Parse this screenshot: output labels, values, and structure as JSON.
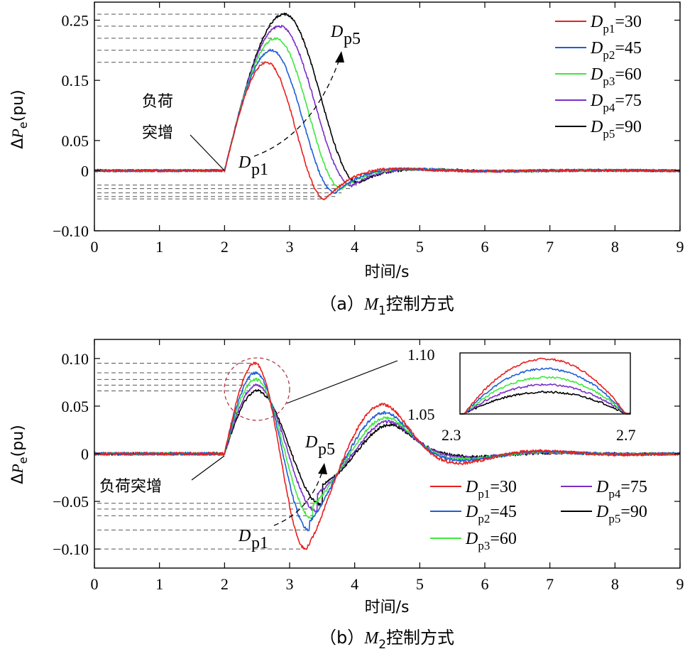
{
  "chart_data": [
    {
      "type": "line",
      "caption": {
        "prefix": "（a）",
        "var": "M",
        "sub": "1",
        "suffix": "控制方式"
      },
      "xlabel": "时间/s",
      "ylabel": {
        "delta": "Δ",
        "var": "P",
        "sub": "e",
        "unit": "(pu)"
      },
      "xlim": [
        0,
        9
      ],
      "ylim": [
        -0.1,
        0.28
      ],
      "xticks": [
        0,
        1,
        2,
        3,
        4,
        5,
        6,
        7,
        8,
        9
      ],
      "xtick_labels": [
        "0",
        "1",
        "2",
        "3",
        "4",
        "5",
        "6",
        "7",
        "8",
        "9"
      ],
      "yticks": [
        -0.1,
        0,
        0.05,
        0.15,
        0.25
      ],
      "ytick_labels": [
        "−0.10",
        "0",
        "0.05",
        "0.15",
        "0.25"
      ],
      "legend_position": "top-right",
      "grid": false,
      "guide_lines_peak": [
        0.18,
        0.2,
        0.22,
        0.24,
        0.26
      ],
      "guide_lines_trough": [
        -0.047,
        -0.043,
        -0.037,
        -0.03,
        -0.024
      ],
      "series": [
        {
          "name": "D_p1=30",
          "label": {
            "var": "D",
            "sub": "p1",
            "eq": "=30"
          },
          "color": "#e8201e",
          "peak": 0.18,
          "tpeak": 2.65,
          "trough": -0.047,
          "ttrough": 3.55,
          "tend": 3.5
        },
        {
          "name": "D_p2=45",
          "label": {
            "var": "D",
            "sub": "p2",
            "eq": "=45"
          },
          "color": "#1f5fd6",
          "peak": 0.2,
          "tpeak": 2.72,
          "trough": -0.037,
          "ttrough": 3.7,
          "tend": 3.7
        },
        {
          "name": "D_p3=60",
          "label": {
            "var": "D",
            "sub": "p3",
            "eq": "=60"
          },
          "color": "#3ee83e",
          "peak": 0.22,
          "tpeak": 2.79,
          "trough": -0.03,
          "ttrough": 3.8,
          "tend": 3.85
        },
        {
          "name": "D_p4=75",
          "label": {
            "var": "D",
            "sub": "p4",
            "eq": "=75"
          },
          "color": "#7a2ec8",
          "peak": 0.24,
          "tpeak": 2.85,
          "trough": -0.025,
          "ttrough": 3.95,
          "tend": 3.95
        },
        {
          "name": "D_p5=90",
          "label": {
            "var": "D",
            "sub": "p5",
            "eq": "=90"
          },
          "color": "#000000",
          "peak": 0.26,
          "tpeak": 2.92,
          "trough": -0.02,
          "ttrough": 4.05,
          "tend": 4.05
        }
      ],
      "annotations": {
        "load_step": [
          "负荷",
          "突增"
        ],
        "dp1": {
          "var": "D",
          "sub": "p1"
        },
        "dp5": {
          "var": "D",
          "sub": "p5"
        }
      }
    },
    {
      "type": "line",
      "caption": {
        "prefix": "（b）",
        "var": "M",
        "sub": "2",
        "suffix": "控制方式"
      },
      "xlabel": "时间/s",
      "ylabel": {
        "delta": "Δ",
        "var": "P",
        "sub": "e",
        "unit": "(pu)"
      },
      "xlim": [
        0,
        9
      ],
      "ylim": [
        -0.12,
        0.12
      ],
      "xticks": [
        0,
        1,
        2,
        3,
        4,
        5,
        6,
        7,
        8,
        9
      ],
      "xtick_labels": [
        "0",
        "1",
        "2",
        "3",
        "4",
        "5",
        "6",
        "7",
        "8",
        "9"
      ],
      "yticks": [
        -0.1,
        -0.05,
        0,
        0.05,
        0.1
      ],
      "ytick_labels": [
        "−0.10",
        "−0.05",
        "0",
        "0.05",
        "0.10"
      ],
      "legend_position": "bottom-right",
      "grid": false,
      "guide_lines_peak": [
        0.095,
        0.085,
        0.078,
        0.072,
        0.066
      ],
      "guide_lines_trough": [
        -0.1,
        -0.08,
        -0.065,
        -0.058,
        -0.052
      ],
      "series": [
        {
          "name": "D_p1=30",
          "label": {
            "var": "D",
            "sub": "p1",
            "eq": "=30"
          },
          "color": "#e8201e",
          "peak": 0.095,
          "tpeak": 2.47,
          "trough": -0.1,
          "ttrough": 3.25
        },
        {
          "name": "D_p2=45",
          "label": {
            "var": "D",
            "sub": "p2",
            "eq": "=45"
          },
          "color": "#1f5fd6",
          "peak": 0.085,
          "tpeak": 2.48,
          "trough": -0.08,
          "ttrough": 3.3
        },
        {
          "name": "D_p3=60",
          "label": {
            "var": "D",
            "sub": "p3",
            "eq": "=60"
          },
          "color": "#3ee83e",
          "peak": 0.078,
          "tpeak": 2.48,
          "trough": -0.068,
          "ttrough": 3.35
        },
        {
          "name": "D_p4=75",
          "label": {
            "var": "D",
            "sub": "p4",
            "eq": "=75"
          },
          "color": "#7a2ec8",
          "peak": 0.072,
          "tpeak": 2.49,
          "trough": -0.06,
          "ttrough": 3.42
        },
        {
          "name": "D_p5=90",
          "label": {
            "var": "D",
            "sub": "p5",
            "eq": "=90"
          },
          "color": "#000000",
          "peak": 0.066,
          "tpeak": 2.5,
          "trough": -0.054,
          "ttrough": 3.5
        }
      ],
      "inset": {
        "xlim": [
          2.3,
          2.7
        ],
        "ylim": [
          1.05,
          1.1
        ],
        "xtick_labels": [
          "2.3",
          "2.7"
        ],
        "ytick_labels": [
          "1.10",
          "1.05"
        ],
        "peaks": [
          1.095,
          1.087,
          1.08,
          1.074,
          1.068
        ]
      },
      "annotations": {
        "load_step": "负荷突增",
        "dp1": {
          "var": "D",
          "sub": "p1"
        },
        "dp5": {
          "var": "D",
          "sub": "p5"
        }
      }
    }
  ]
}
